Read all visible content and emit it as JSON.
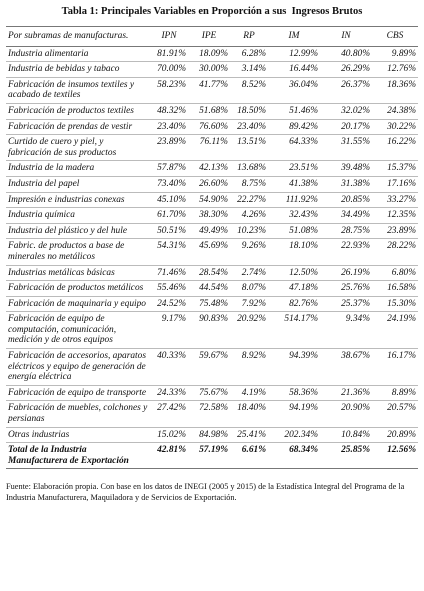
{
  "title": "Tabla 1: Principales Variables en Proporción a sus  Ingresos Brutos",
  "table": {
    "header": [
      "Por subramas de manufacturas.",
      "IPN",
      "IPE",
      "RP",
      "IM",
      "IN",
      "CBS"
    ],
    "rows": [
      [
        "Industria alimentaria",
        "81.91%",
        "18.09%",
        "6.28%",
        "12.99%",
        "40.80%",
        "9.89%"
      ],
      [
        "Industria de bebidas y tabaco",
        "70.00%",
        "30.00%",
        "3.14%",
        "16.44%",
        "26.29%",
        "12.76%"
      ],
      [
        "Fabricación de insumos textiles y acabado de textiles",
        "58.23%",
        "41.77%",
        "8.52%",
        "36.04%",
        "26.37%",
        "18.36%"
      ],
      [
        "Fabricación de productos textiles",
        "48.32%",
        "51.68%",
        "18.50%",
        "51.46%",
        "32.02%",
        "24.38%"
      ],
      [
        "Fabricación de prendas de vestir",
        "23.40%",
        "76.60%",
        "23.40%",
        "89.42%",
        "20.17%",
        "30.22%"
      ],
      [
        "Curtido de cuero y piel, y fabricación de sus productos",
        "23.89%",
        "76.11%",
        "13.51%",
        "64.33%",
        "31.55%",
        "16.22%"
      ],
      [
        "Industria de la madera",
        "57.87%",
        "42.13%",
        "13.68%",
        "23.51%",
        "39.48%",
        "15.37%"
      ],
      [
        "Industria del papel",
        "73.40%",
        "26.60%",
        "8.75%",
        "41.38%",
        "31.38%",
        "17.16%"
      ],
      [
        "Impresión e industrias conexas",
        "45.10%",
        "54.90%",
        "22.27%",
        "111.92%",
        "20.85%",
        "33.27%"
      ],
      [
        "Industria química",
        "61.70%",
        "38.30%",
        "4.26%",
        "32.43%",
        "34.49%",
        "12.35%"
      ],
      [
        "Industria del plástico y del hule",
        "50.51%",
        "49.49%",
        "10.23%",
        "51.08%",
        "28.75%",
        "23.89%"
      ],
      [
        "Fabric. de productos a base de minerales no metálicos",
        "54.31%",
        "45.69%",
        "9.26%",
        "18.10%",
        "22.93%",
        "28.22%"
      ],
      [
        "Industrias metálicas básicas",
        "71.46%",
        "28.54%",
        "2.74%",
        "12.50%",
        "26.19%",
        "6.80%"
      ],
      [
        "Fabricación de productos metálicos",
        "55.46%",
        "44.54%",
        "8.07%",
        "47.18%",
        "25.76%",
        "16.58%"
      ],
      [
        "Fabricación de maquinaria y equipo",
        "24.52%",
        "75.48%",
        "7.92%",
        "82.76%",
        "25.37%",
        "15.30%"
      ],
      [
        "Fabricación de equipo de computación, comunicación, medición y de otros equipos",
        "9.17%",
        "90.83%",
        "20.92%",
        "514.17%",
        "9.34%",
        "24.19%"
      ],
      [
        "Fabricación de accesorios, aparatos eléctricos y equipo de generación de energía eléctrica",
        "40.33%",
        "59.67%",
        "8.92%",
        "94.39%",
        "38.67%",
        "16.17%"
      ],
      [
        "Fabricación de equipo de transporte",
        "24.33%",
        "75.67%",
        "4.19%",
        "58.36%",
        "21.36%",
        "8.89%"
      ],
      [
        "Fabricación de muebles, colchones y persianas",
        "27.42%",
        "72.58%",
        "18.40%",
        "94.19%",
        "20.90%",
        "20.57%"
      ],
      [
        "Otras industrias",
        "15.02%",
        "84.98%",
        "25.41%",
        "202.34%",
        "10.84%",
        "20.89%"
      ]
    ],
    "total": [
      "Total de la Industria Manufacturera de Exportación",
      "42.81%",
      "57.19%",
      "6.61%",
      "68.34%",
      "25.85%",
      "12.56%"
    ]
  },
  "footer": "Fuente: Elaboración propia. Con base en los datos de INEGI  (2005 y 2015) de la Estadística Integral del Programa de la Industria Manufacturera, Maquiladora y de Servicios de Exportación."
}
